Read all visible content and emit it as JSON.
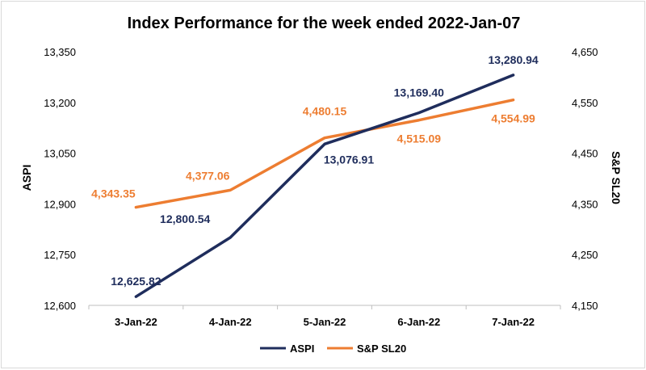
{
  "colors": {
    "aspi": "#1f2d5c",
    "sp": "#ed7d31",
    "grid": "#d9d9d9",
    "axis": "#bfbfbf"
  },
  "chart_data": {
    "type": "line",
    "title": "Index Performance for the week ended 2022-Jan-07",
    "categories": [
      "3-Jan-22",
      "4-Jan-22",
      "5-Jan-22",
      "6-Jan-22",
      "7-Jan-22"
    ],
    "series": [
      {
        "name": "ASPI",
        "axis": "left",
        "values": [
          12625.82,
          12800.54,
          13076.91,
          13169.4,
          13280.94
        ],
        "labels": [
          "12,625.82",
          "12,800.54",
          "13,076.91",
          "13,169.40",
          "13,280.94"
        ]
      },
      {
        "name": "S&P SL20",
        "axis": "right",
        "values": [
          4343.35,
          4377.06,
          4480.15,
          4515.09,
          4554.99
        ],
        "labels": [
          "4,343.35",
          "4,377.06",
          "4,480.15",
          "4,515.09",
          "4,554.99"
        ]
      }
    ],
    "ylabel": "ASPI",
    "ylim": [
      12600,
      13350
    ],
    "yticks": [
      "12,600",
      "12,750",
      "12,900",
      "13,050",
      "13,200",
      "13,350"
    ],
    "y2label": "S&P SL20",
    "y2lim": [
      4150,
      4650
    ],
    "y2ticks": [
      "4,150",
      "4,250",
      "4,350",
      "4,450",
      "4,550",
      "4,650"
    ],
    "grid": false,
    "legend": "bottom"
  }
}
